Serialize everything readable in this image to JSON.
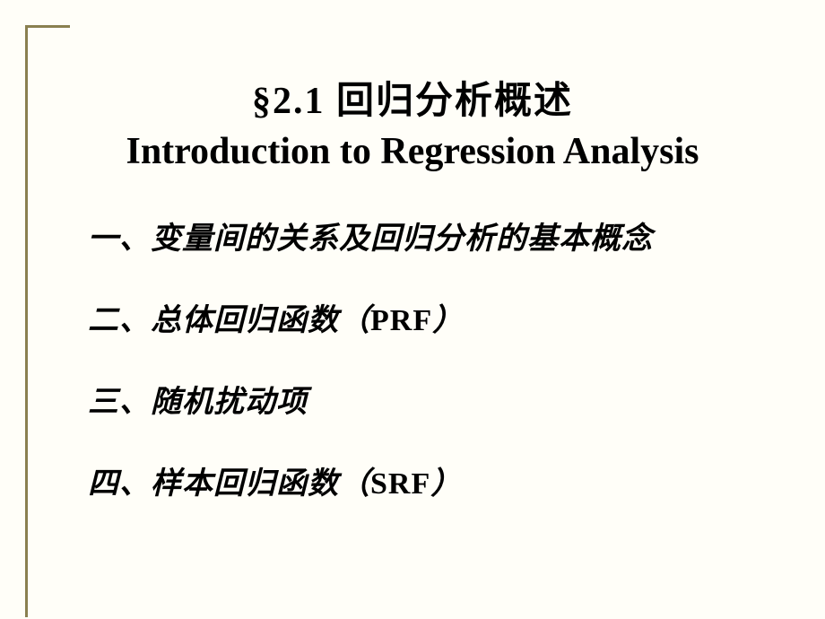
{
  "slide": {
    "title_cn": "§2.1  回归分析概述",
    "title_en": "Introduction to Regression Analysis",
    "items": [
      {
        "text": "一、变量间的关系及回归分析的基本概念"
      },
      {
        "text": "二、总体回归函数（",
        "suffix": "PRF",
        "close": "）"
      },
      {
        "text": "三、随机扰动项"
      },
      {
        "text": "四、样本回归函数（",
        "suffix": "SRF",
        "close": "）"
      }
    ],
    "colors": {
      "background": "#fffef8",
      "border_accent": "#8a8050",
      "text": "#000000"
    },
    "typography": {
      "title_fontsize": 42,
      "item_fontsize": 34,
      "title_weight": "bold",
      "item_weight": "bold",
      "item_style": "italic"
    }
  }
}
